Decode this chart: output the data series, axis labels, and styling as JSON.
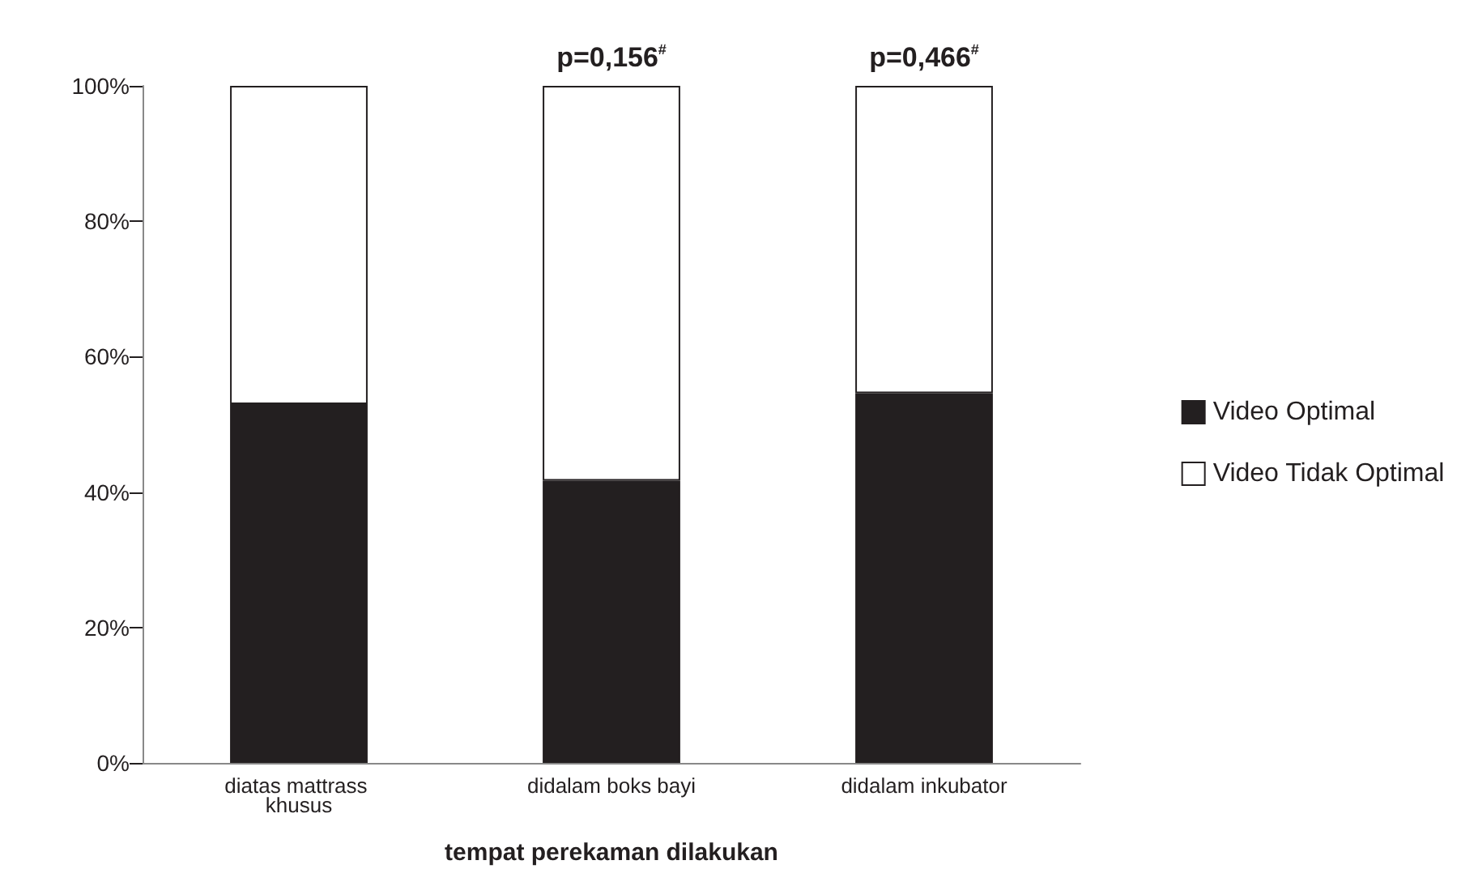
{
  "chart_data": {
    "type": "bar",
    "stacked": true,
    "xlabel": "tempat perekaman dilakukan",
    "categories": [
      "diatas mattrass khusus",
      "didalam boks bayi",
      "didalam inkubator"
    ],
    "series": [
      {
        "name": "Video Optimal",
        "color": "#231f20",
        "values": [
          53,
          41.7,
          54.6
        ]
      },
      {
        "name": "Video Tidak Optimal",
        "color": "#ffffff",
        "values": [
          47,
          58.3,
          45.4
        ]
      }
    ],
    "ylim": [
      0,
      100
    ],
    "yticks": [
      {
        "value": 0,
        "label": "0%"
      },
      {
        "value": 20,
        "label": "20%"
      },
      {
        "value": 40,
        "label": "40%"
      },
      {
        "value": 60,
        "label": "60%"
      },
      {
        "value": 80,
        "label": "80%"
      },
      {
        "value": 100,
        "label": "100%"
      }
    ],
    "annotations": [
      {
        "text": "p=0,156$^{#}$",
        "x": "didalam boks bayi",
        "y": 100
      },
      {
        "text": "p=0,466$^{#}$",
        "x": "didalam inkubator",
        "y": 100
      }
    ],
    "legend": "right",
    "grid": false
  }
}
